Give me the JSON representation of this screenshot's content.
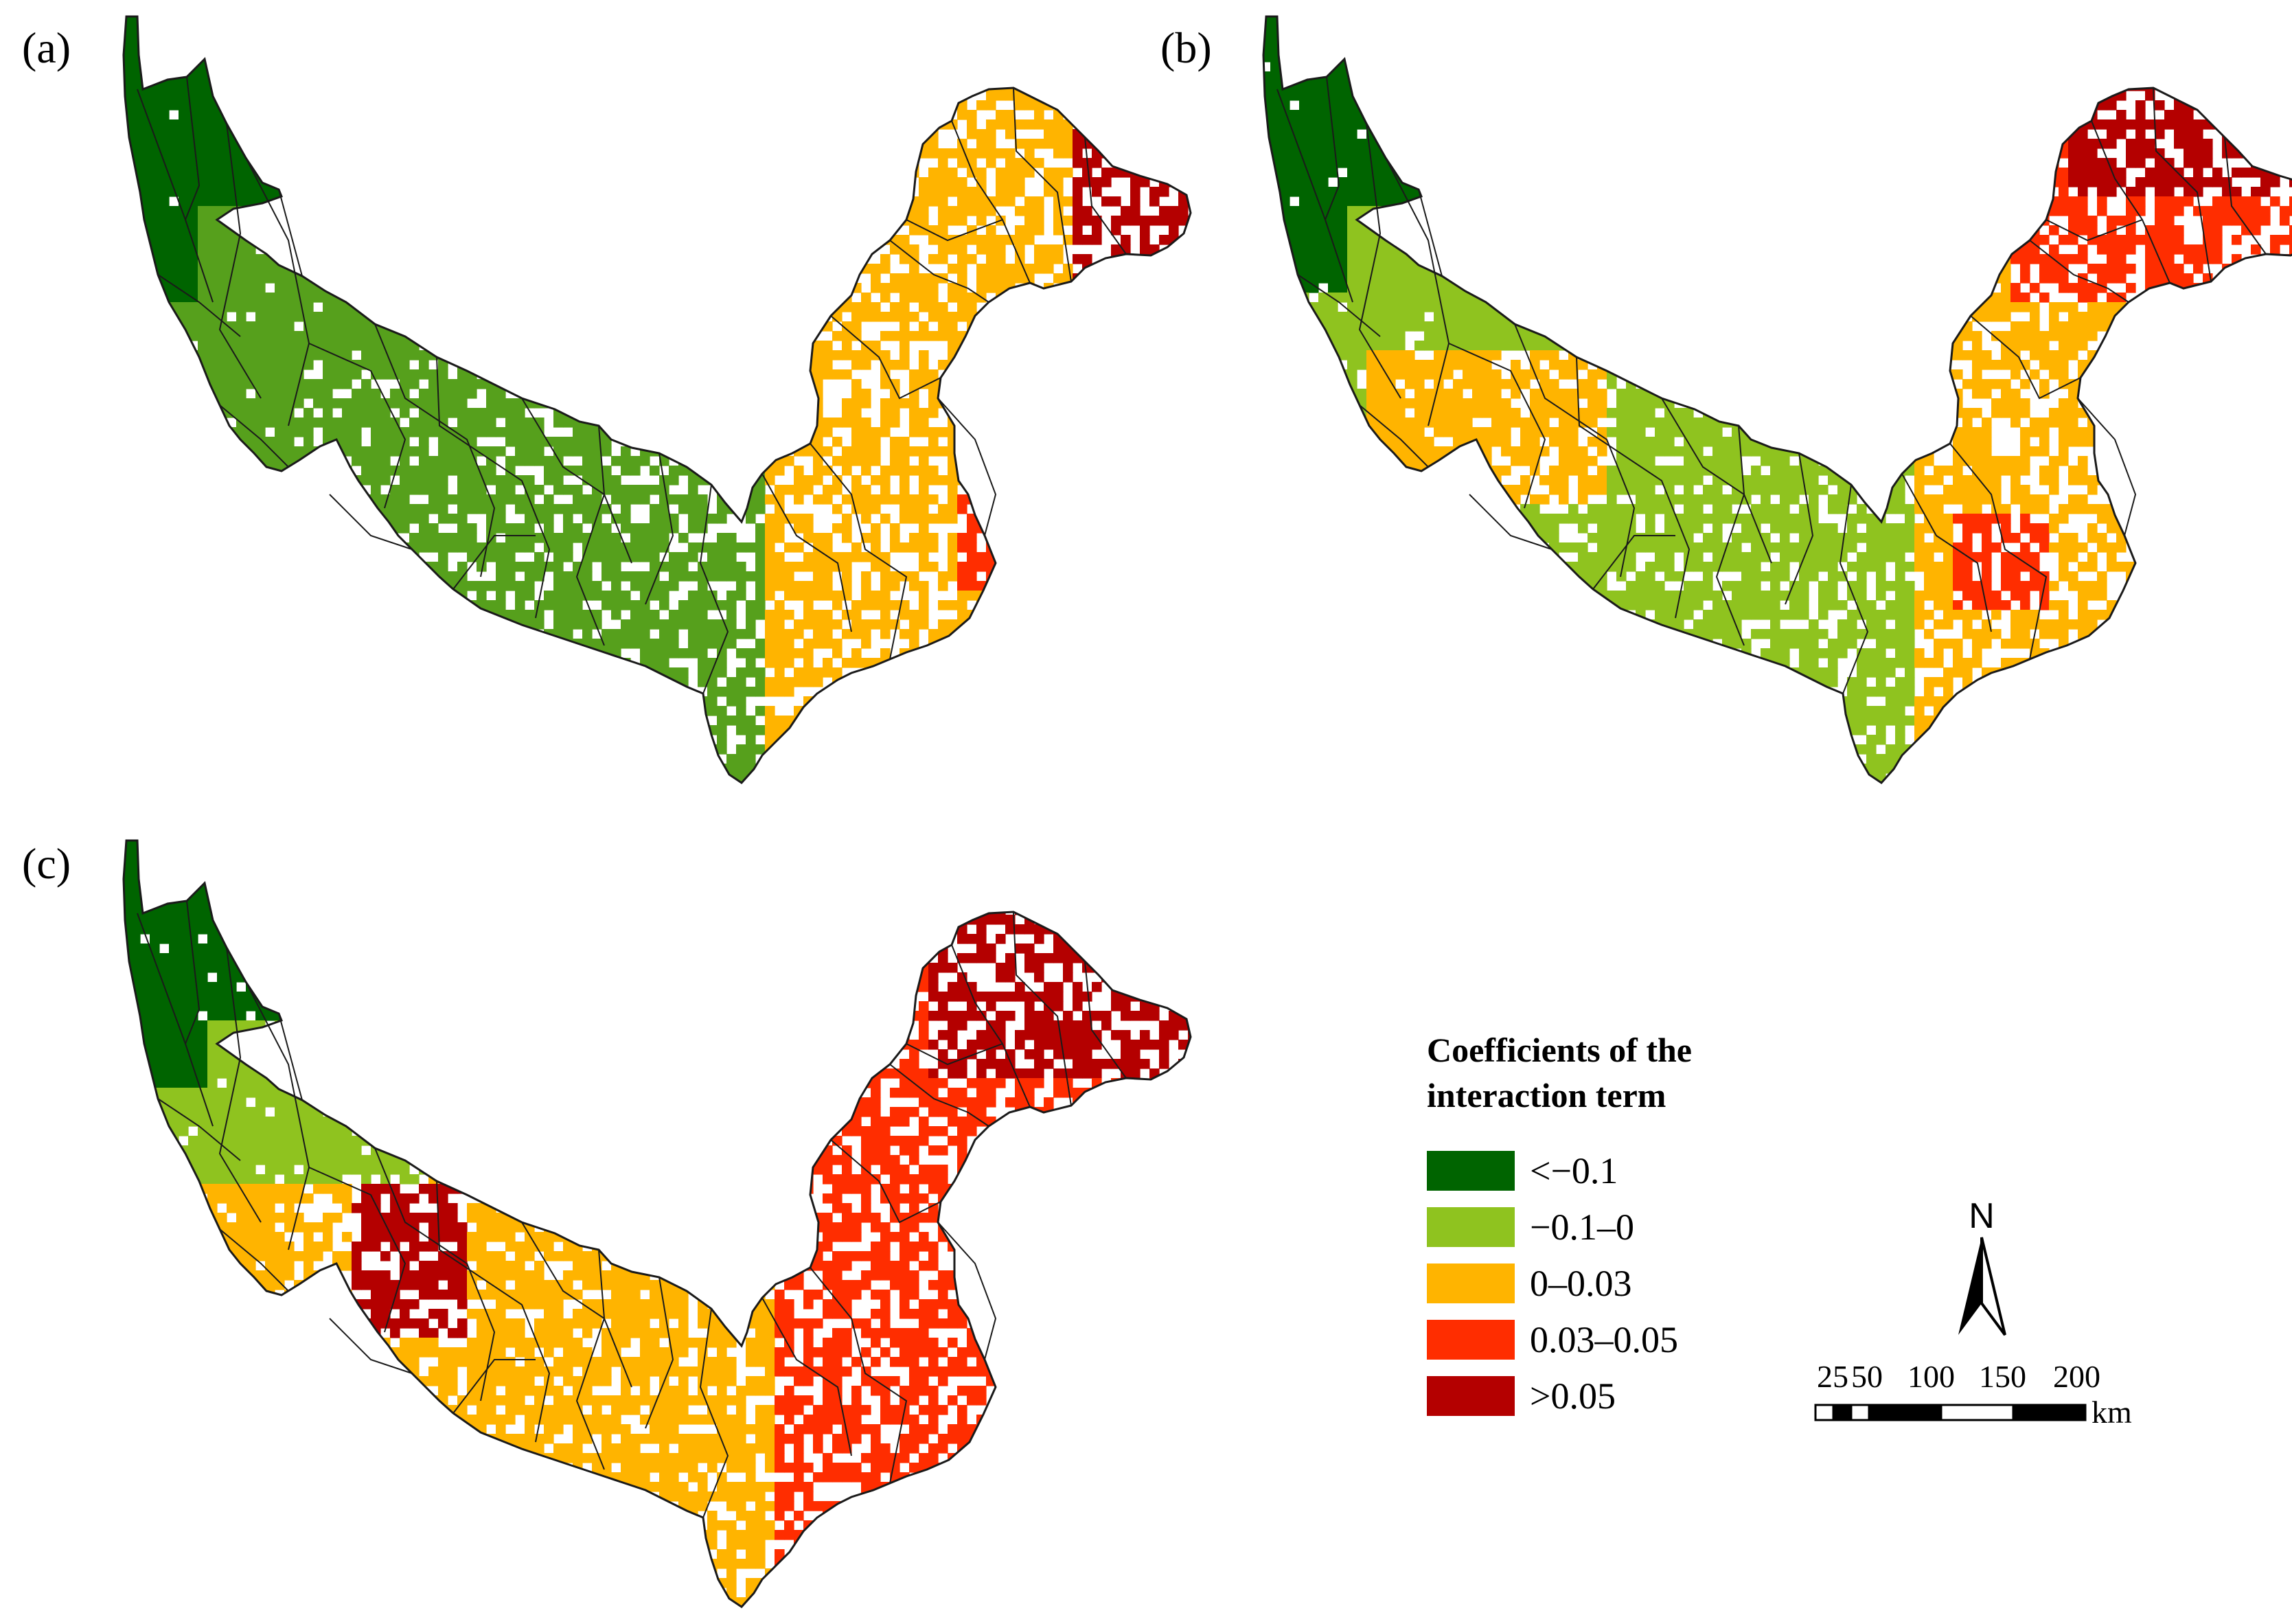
{
  "panels": [
    {
      "id": "a",
      "label": "(a)"
    },
    {
      "id": "b",
      "label": "(b)"
    },
    {
      "id": "c",
      "label": "(c)"
    }
  ],
  "legend": {
    "title_line1": "Coefficients of the",
    "title_line2": "interaction term",
    "classes": [
      {
        "label": "<−0.1",
        "color": "#006400"
      },
      {
        "label": "−0.1–0",
        "color": "#8fc31f"
      },
      {
        "label": "0–0.03",
        "color": "#ffb400"
      },
      {
        "label": "0.03–0.05",
        "color": "#ff2d00"
      },
      {
        "label": ">0.05",
        "color": "#b40000"
      }
    ],
    "panel_colors": {
      "a": {
        "low": "#006400",
        "mid": "#56a01c",
        "east": "#ffb400",
        "hot": "#ff2d00",
        "max": "#b40000"
      },
      "b": {
        "low": "#006400",
        "mid": "#8fc31f",
        "east": "#ffb400",
        "hot": "#ff2d00",
        "max": "#b40000"
      },
      "c": {
        "low": "#006400",
        "mid": "#8fc31f",
        "east": "#ff2d00",
        "hot": "#ffb400",
        "max": "#b40000"
      }
    }
  },
  "north_arrow": {
    "label": "N"
  },
  "scale_bar": {
    "ticks": [
      "25",
      "50",
      "100",
      "150",
      "200"
    ],
    "unit": "km"
  }
}
